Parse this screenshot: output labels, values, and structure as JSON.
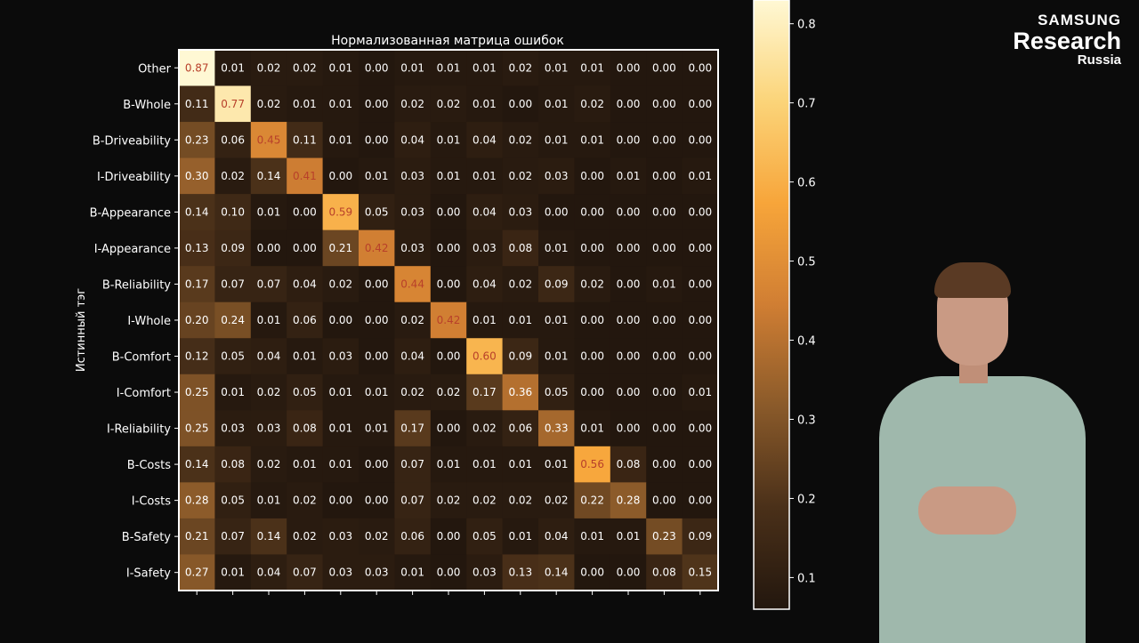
{
  "logo": {
    "line1": "SAMSUNG",
    "line2": "Research",
    "line3": "Russia"
  },
  "chart_data": {
    "type": "heatmap",
    "title": "Нормализованная матрица ошибок",
    "ylabel": "Истинный тэг",
    "xlabel": "",
    "rows": [
      "Other",
      "B-Whole",
      "B-Driveability",
      "I-Driveability",
      "B-Appearance",
      "I-Appearance",
      "B-Reliability",
      "I-Whole",
      "B-Comfort",
      "I-Comfort",
      "I-Reliability",
      "B-Costs",
      "I-Costs",
      "B-Safety",
      "I-Safety"
    ],
    "values": [
      [
        0.87,
        0.01,
        0.02,
        0.02,
        0.01,
        0.0,
        0.01,
        0.01,
        0.01,
        0.02,
        0.01,
        0.01,
        0.0,
        0.0,
        0.0
      ],
      [
        0.11,
        0.77,
        0.02,
        0.01,
        0.01,
        0.0,
        0.02,
        0.02,
        0.01,
        0.0,
        0.01,
        0.02,
        0.0,
        0.0,
        0.0
      ],
      [
        0.23,
        0.06,
        0.45,
        0.11,
        0.01,
        0.0,
        0.04,
        0.01,
        0.04,
        0.02,
        0.01,
        0.01,
        0.0,
        0.0,
        0.0
      ],
      [
        0.3,
        0.02,
        0.14,
        0.41,
        0.0,
        0.01,
        0.03,
        0.01,
        0.01,
        0.02,
        0.03,
        0.0,
        0.01,
        0.0,
        0.01
      ],
      [
        0.14,
        0.1,
        0.01,
        0.0,
        0.59,
        0.05,
        0.03,
        0.0,
        0.04,
        0.03,
        0.0,
        0.0,
        0.0,
        0.0,
        0.0
      ],
      [
        0.13,
        0.09,
        0.0,
        0.0,
        0.21,
        0.42,
        0.03,
        0.0,
        0.03,
        0.08,
        0.01,
        0.0,
        0.0,
        0.0,
        0.0
      ],
      [
        0.17,
        0.07,
        0.07,
        0.04,
        0.02,
        0.0,
        0.44,
        0.0,
        0.04,
        0.02,
        0.09,
        0.02,
        0.0,
        0.01,
        0.0
      ],
      [
        0.2,
        0.24,
        0.01,
        0.06,
        0.0,
        0.0,
        0.02,
        0.42,
        0.01,
        0.01,
        0.01,
        0.0,
        0.0,
        0.0,
        0.0
      ],
      [
        0.12,
        0.05,
        0.04,
        0.01,
        0.03,
        0.0,
        0.04,
        0.0,
        0.6,
        0.09,
        0.01,
        0.0,
        0.0,
        0.0,
        0.0
      ],
      [
        0.25,
        0.01,
        0.02,
        0.05,
        0.01,
        0.01,
        0.02,
        0.02,
        0.17,
        0.36,
        0.05,
        0.0,
        0.0,
        0.0,
        0.01
      ],
      [
        0.25,
        0.03,
        0.03,
        0.08,
        0.01,
        0.01,
        0.17,
        0.0,
        0.02,
        0.06,
        0.33,
        0.01,
        0.0,
        0.0,
        0.0
      ],
      [
        0.14,
        0.08,
        0.02,
        0.01,
        0.01,
        0.0,
        0.07,
        0.01,
        0.01,
        0.01,
        0.01,
        0.56,
        0.08,
        0.0,
        0.0
      ],
      [
        0.28,
        0.05,
        0.01,
        0.02,
        0.0,
        0.0,
        0.07,
        0.02,
        0.02,
        0.02,
        0.02,
        0.22,
        0.28,
        0.0,
        0.0
      ],
      [
        0.21,
        0.07,
        0.14,
        0.02,
        0.03,
        0.02,
        0.06,
        0.0,
        0.05,
        0.01,
        0.04,
        0.01,
        0.01,
        0.23,
        0.09
      ],
      [
        0.27,
        0.01,
        0.04,
        0.07,
        0.03,
        0.03,
        0.01,
        0.0,
        0.03,
        0.13,
        0.14,
        0.0,
        0.0,
        0.08,
        0.15
      ]
    ],
    "colorbar": {
      "min": 0.1,
      "max": 0.83,
      "ticks": [
        0.1,
        0.2,
        0.3,
        0.4,
        0.5,
        0.6,
        0.7,
        0.8
      ]
    },
    "colormap": [
      "#23170e",
      "#4a3019",
      "#8a5a2a",
      "#d07e33",
      "#f7a53a",
      "#fbd479",
      "#fff8d4"
    ]
  }
}
